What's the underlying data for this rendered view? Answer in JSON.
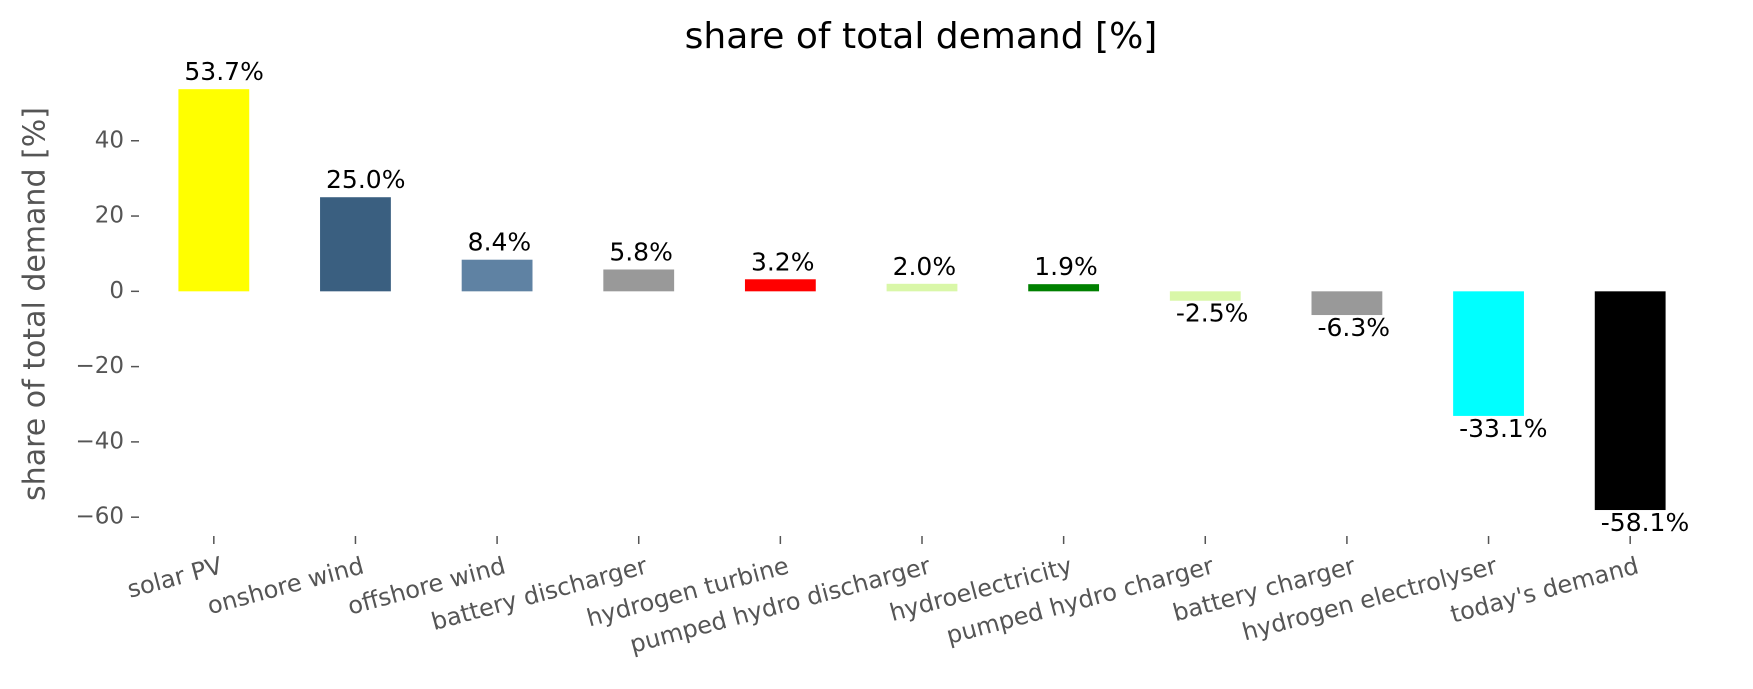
{
  "chart_data": {
    "type": "bar",
    "title": "share of total demand [%]",
    "y_label": "share of total demand [%]",
    "categories": [
      "solar PV",
      "onshore wind",
      "offshore wind",
      "battery discharger",
      "hydrogen turbine",
      "pumped hydro discharger",
      "hydroelectricity",
      "pumped hydro charger",
      "battery charger",
      "hydrogen electrolyser",
      "today's demand"
    ],
    "values": [
      53.7,
      25.0,
      8.4,
      5.8,
      3.2,
      2.0,
      1.9,
      -2.5,
      -6.3,
      -33.1,
      -58.1
    ],
    "value_labels": [
      "53.7%",
      "25.0%",
      "8.4%",
      "5.8%",
      "3.2%",
      "2.0%",
      "1.9%",
      "-2.5%",
      "-6.3%",
      "-33.1%",
      "-58.1%"
    ],
    "colors": [
      "#ffff00",
      "#3a5f80",
      "#5f82a3",
      "#999999",
      "#ff0000",
      "#d9f7a8",
      "#008000",
      "#d9f7a8",
      "#999999",
      "#00ffff",
      "#000000"
    ],
    "ylim": [
      -65,
      58
    ],
    "yticks": [
      {
        "value": -60,
        "label": "−60"
      },
      {
        "value": -40,
        "label": "−40"
      },
      {
        "value": -20,
        "label": "−20"
      },
      0,
      20,
      40
    ],
    "grid": false
  }
}
